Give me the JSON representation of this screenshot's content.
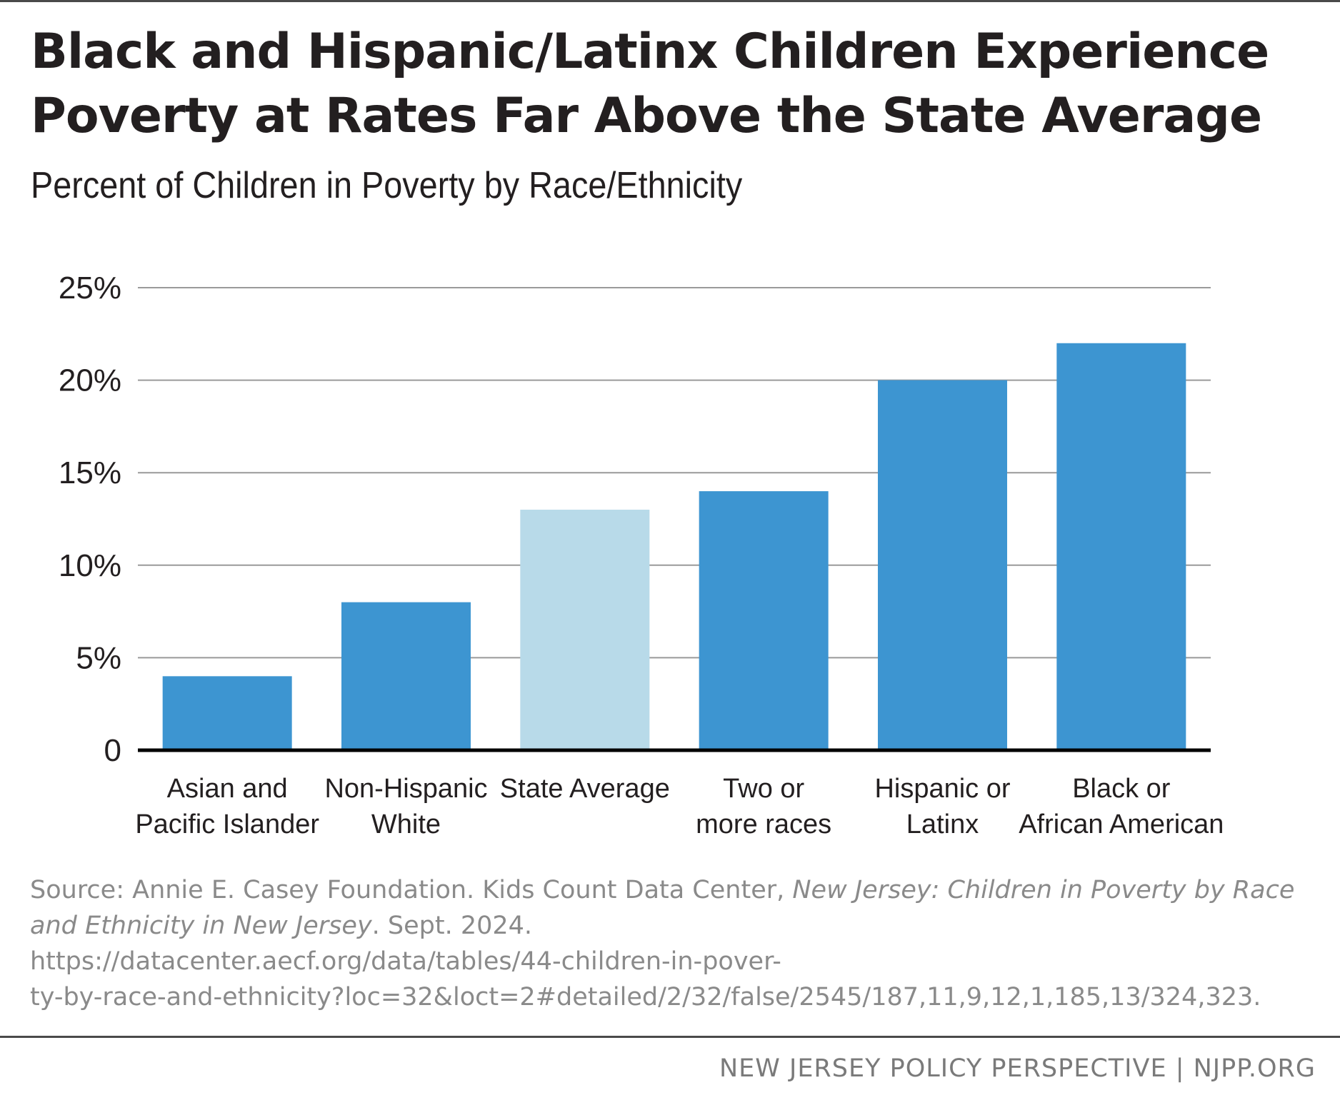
{
  "header": {
    "title": "Black and Hispanic/Latinx Children Experience Poverty at Rates Far Above the State Average",
    "subtitle": "Percent of Children in Poverty by Race/Ethnicity"
  },
  "colors": {
    "bar": "#3d95d1",
    "highlight_bar": "#b8dae9",
    "gridline": "#9a9a9a",
    "baseline": "#000000"
  },
  "chart_data": {
    "type": "bar",
    "title": "Percent of Children in Poverty by Race/Ethnicity",
    "xlabel": "",
    "ylabel": "",
    "ylim": [
      0,
      25
    ],
    "yticks": [
      0,
      5,
      10,
      15,
      20,
      25
    ],
    "ytick_labels": [
      "0",
      "5%",
      "10%",
      "15%",
      "20%",
      "25%"
    ],
    "grid": true,
    "categories": [
      [
        "Asian and",
        "Pacific Islander"
      ],
      [
        "Non-Hispanic",
        "White"
      ],
      [
        "State Average"
      ],
      [
        "Two or",
        "more races"
      ],
      [
        "Hispanic or",
        "Latinx"
      ],
      [
        "Black or",
        "African American"
      ]
    ],
    "values": [
      4,
      8,
      13,
      14,
      20,
      22
    ],
    "highlight": [
      false,
      false,
      true,
      false,
      false,
      false
    ]
  },
  "source": {
    "prefix": "Source:  Annie E. Casey Foundation. Kids Count Data Center, ",
    "italic": "New Jersey: Children in Poverty by Race and Ethnicity in New Jersey",
    "suffix": ". Sept. 2024.",
    "url_line1": "https://datacenter.aecf.org/data/tables/44-children-in-pover-",
    "url_line2": "ty-by-race-and-ethnicity?loc=32&loct=2#detailed/2/32/false/2545/187,11,9,12,1,185,13/324,323."
  },
  "footer": {
    "text": "NEW JERSEY POLICY PERSPECTIVE | NJPP.ORG"
  }
}
